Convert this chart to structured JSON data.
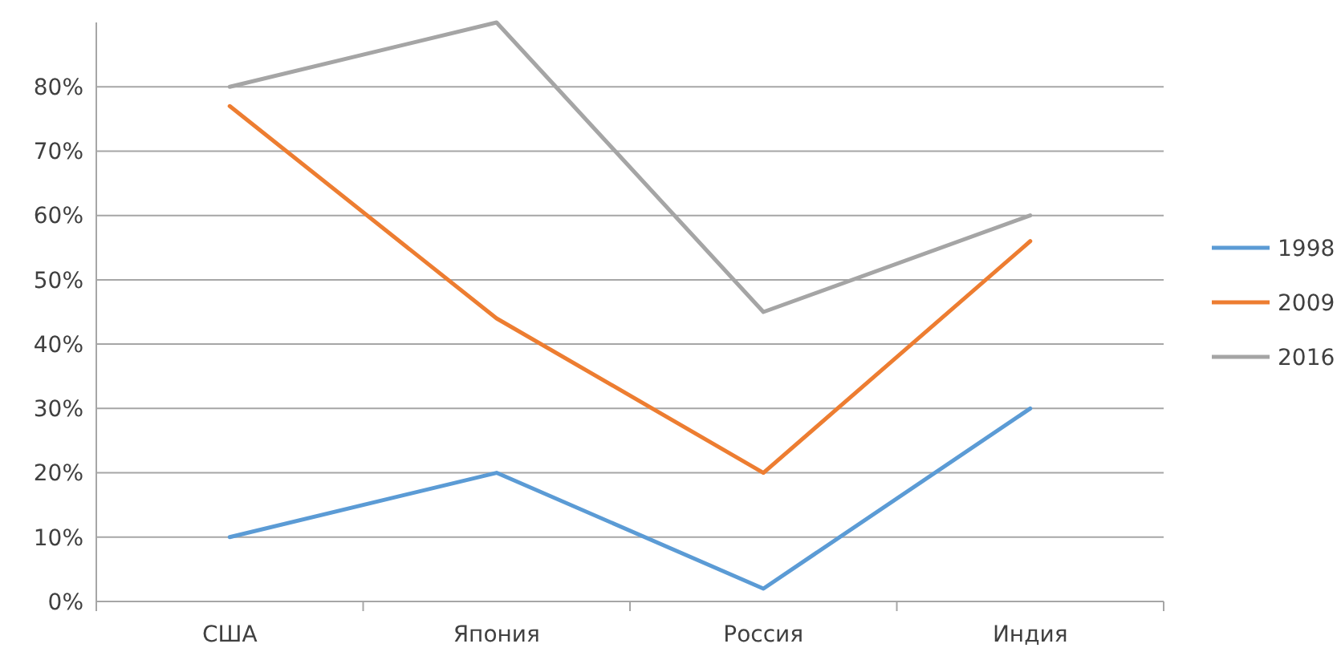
{
  "chart_data": {
    "type": "line",
    "categories": [
      "США",
      "Япония",
      "Россия",
      "Индия"
    ],
    "series": [
      {
        "name": "1998",
        "color": "#5b9bd5",
        "values": [
          10,
          20,
          2,
          30
        ]
      },
      {
        "name": "2009",
        "color": "#ed7d31",
        "values": [
          77,
          44,
          20,
          56
        ]
      },
      {
        "name": "2016",
        "color": "#a5a5a5",
        "values": [
          80,
          90,
          45,
          60
        ]
      }
    ],
    "ylim": [
      0,
      90
    ],
    "yticks": [
      {
        "value": 0,
        "label": "0%"
      },
      {
        "value": 10,
        "label": "10%"
      },
      {
        "value": 20,
        "label": "20%"
      },
      {
        "value": 30,
        "label": "30%"
      },
      {
        "value": 40,
        "label": "40%"
      },
      {
        "value": 50,
        "label": "50%"
      },
      {
        "value": 60,
        "label": "60%"
      },
      {
        "value": 70,
        "label": "70%"
      },
      {
        "value": 80,
        "label": "80%"
      }
    ],
    "grid": "y",
    "legend": "right",
    "marker": "none",
    "line_style": "solid"
  }
}
